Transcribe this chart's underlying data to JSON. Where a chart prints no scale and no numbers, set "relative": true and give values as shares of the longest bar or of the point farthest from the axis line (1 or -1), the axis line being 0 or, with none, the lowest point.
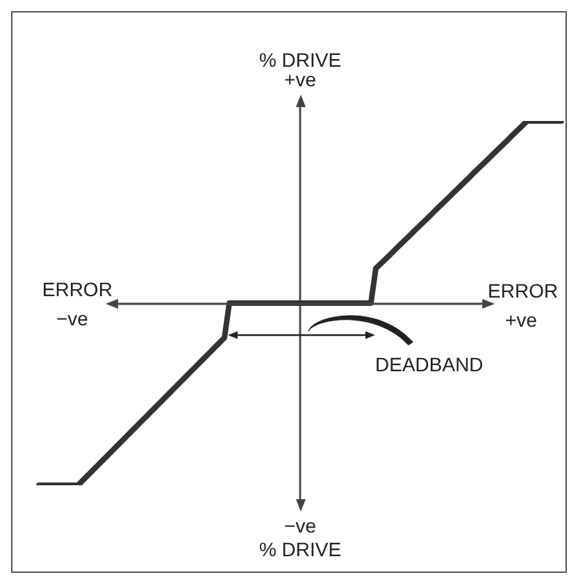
{
  "chart_data": {
    "type": "line",
    "relative": true,
    "xlabel": "ERROR",
    "ylabel": "% DRIVE",
    "tick_labels": false,
    "marker": "none",
    "line_style": "solid",
    "categories": [
      null,
      null,
      null,
      null,
      null,
      null,
      null,
      null,
      null,
      null,
      null,
      null,
      null,
      null,
      null,
      null,
      null,
      null,
      null,
      null,
      null,
      null,
      null,
      null,
      null,
      null,
      null,
      null,
      null,
      null,
      null,
      null,
      null,
      null,
      null,
      null,
      null,
      null,
      null,
      null,
      null,
      null,
      null,
      null,
      null,
      null,
      null,
      null,
      null,
      null,
      null,
      null,
      null,
      null,
      null,
      null,
      null,
      null,
      null,
      null,
      null,
      null,
      null,
      null,
      null,
      null,
      null,
      null,
      null,
      null,
      null,
      null,
      null,
      null,
      null,
      null,
      null,
      null,
      null,
      null,
      null,
      null,
      null,
      null,
      null,
      null,
      null,
      null,
      null,
      null,
      null,
      null,
      null,
      null,
      null,
      null,
      null,
      null,
      null,
      null,
      null,
      null,
      null,
      null,
      null,
      null,
      null,
      null
    ],
    "values": [
      -1,
      -1,
      -1,
      -1,
      -1,
      -1,
      -1,
      -1,
      -1,
      -0.973,
      -0.946,
      -0.919,
      -0.892,
      -0.865,
      -0.838,
      -0.811,
      -0.784,
      -0.757,
      -0.73,
      -0.703,
      -0.676,
      -0.649,
      -0.622,
      -0.595,
      -0.568,
      -0.541,
      -0.514,
      -0.487,
      -0.46,
      -0.433,
      -0.406,
      -0.379,
      -0.352,
      -0.325,
      -0.298,
      -0.271,
      -0.244,
      -0.217,
      -0.19,
      0,
      0,
      0,
      0,
      0,
      0,
      0,
      0,
      0,
      0,
      0,
      0,
      0,
      0,
      0,
      0,
      0,
      0,
      0,
      0,
      0,
      0,
      0,
      0,
      0,
      0,
      0,
      0,
      0,
      0,
      0.19,
      0.216,
      0.242,
      0.268,
      0.295,
      0.321,
      0.347,
      0.373,
      0.399,
      0.425,
      0.451,
      0.477,
      0.504,
      0.53,
      0.556,
      0.582,
      0.608,
      0.634,
      0.66,
      0.686,
      0.713,
      0.739,
      0.765,
      0.791,
      0.817,
      0.843,
      0.869,
      0.895,
      0.922,
      0.948,
      0.974,
      1,
      1,
      1,
      1,
      1,
      1,
      1,
      1
    ],
    "color": "#333333",
    "annotations": [
      "+ve",
      "ERROR",
      "−ve",
      "+ve",
      "DEADBAND",
      "−ve",
      "% DRIVE"
    ]
  }
}
